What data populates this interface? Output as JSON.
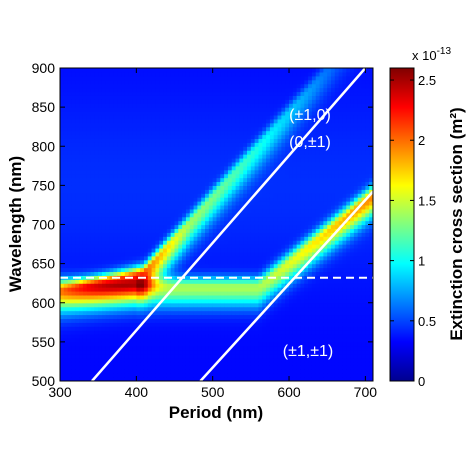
{
  "chart_data": {
    "type": "heatmap",
    "xlabel": "Period (nm)",
    "ylabel": "Wavelength (nm)",
    "xlim": [
      300,
      710
    ],
    "ylim": [
      500,
      900
    ],
    "xticks": [
      "300",
      "400",
      "500",
      "600",
      "700"
    ],
    "yticks": [
      "500",
      "550",
      "600",
      "650",
      "700",
      "750",
      "800",
      "850",
      "900"
    ],
    "colormap": "jet",
    "colorbar": {
      "label": "Extinction cross section (m²)",
      "exponent_label": "x 10",
      "exponent": "-13",
      "ticks": [
        "0",
        "0.5",
        "1",
        "1.5",
        "2",
        "2.5"
      ],
      "range": [
        0,
        2.6
      ]
    },
    "dashed_line": {
      "wavelength": 632,
      "color": "#ffffff"
    },
    "lines": [
      {
        "name": "(±1,0)",
        "x": [
          342,
          700
        ],
        "y": [
          500,
          900
        ],
        "color": "#ffffff"
      },
      {
        "name": "(±1,±1)",
        "x": [
          484,
          710
        ],
        "y": [
          500,
          742
        ],
        "color": "#ffffff"
      }
    ],
    "annotations": [
      "(±1,0)",
      "(0,±1)",
      "(±1,±1)"
    ]
  }
}
